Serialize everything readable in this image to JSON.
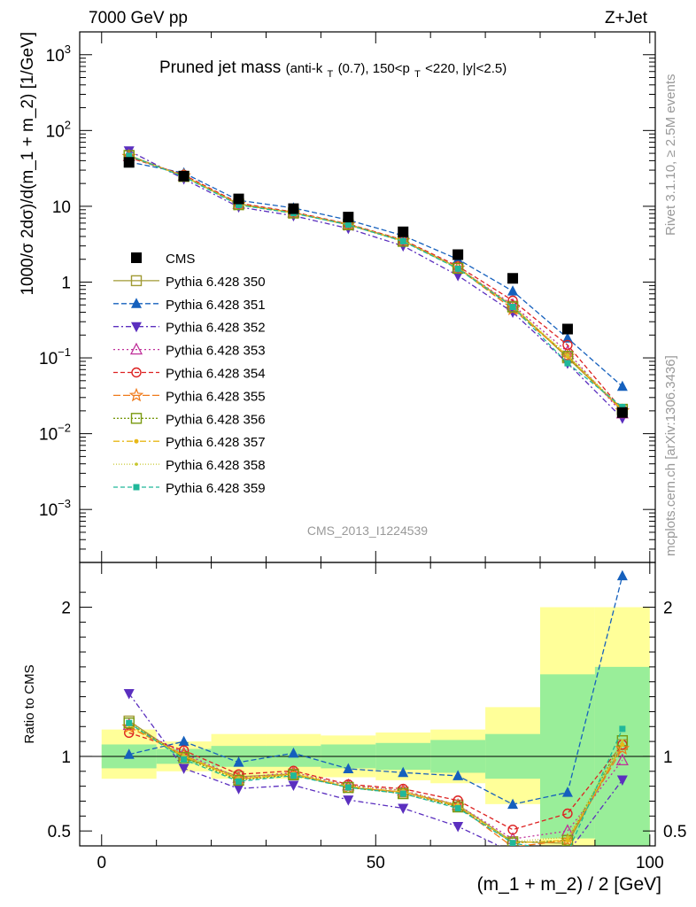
{
  "header": {
    "left": "7000 GeV pp",
    "right": "Z+Jet"
  },
  "side_labels": {
    "rivet": "Rivet 3.1.10, ≥ 2.5M events",
    "mcplots": "mcplots.cern.ch [arXiv:1306.3436]"
  },
  "chart_data": {
    "type": "line",
    "title_main": "Pruned jet mass",
    "title_sub_1": "(anti-k",
    "title_sub_T": "T",
    "title_sub_2": "(0.7), 150<p",
    "title_sub_3": "<220, |y|<2.5)",
    "analysis_label": "CMS_2013_I1224539",
    "ylabel": "1000/σ 2dσ)/d(m_1 + m_2) [1/GeV]",
    "ratio_ylabel": "Ratio to CMS",
    "xlabel": "(m_1 + m_2) / 2 [GeV]",
    "xlim": [
      -4,
      101
    ],
    "ylim": [
      0.0002,
      2000
    ],
    "yscale": "log",
    "ratio_ylim": [
      0.4,
      2.3
    ],
    "x_ticks": [
      "0",
      "50",
      "100"
    ],
    "y_ticks_main": [
      {
        "base": "10",
        "exp": "3"
      },
      {
        "base": "10",
        "exp": "2"
      },
      {
        "base": "10",
        "exp": ""
      },
      {
        "base": "1",
        "exp": ""
      },
      {
        "base": "10",
        "exp": "−1"
      },
      {
        "base": "10",
        "exp": "−2"
      },
      {
        "base": "10",
        "exp": "−3"
      }
    ],
    "ratio_ticks": [
      "2",
      "1",
      "0.5"
    ],
    "x": [
      5,
      15,
      25,
      35,
      45,
      55,
      65,
      75,
      85,
      95
    ],
    "x_edges": [
      0,
      10,
      20,
      30,
      40,
      50,
      60,
      70,
      80,
      90,
      100
    ],
    "cms": {
      "name": "CMS",
      "values": [
        38,
        25,
        12.5,
        9.3,
        7.2,
        4.6,
        2.3,
        1.12,
        0.24,
        0.019
      ],
      "band_inner": [
        [
          0.92,
          1.08
        ],
        [
          0.95,
          1.05
        ],
        [
          0.93,
          1.07
        ],
        [
          0.93,
          1.07
        ],
        [
          0.92,
          1.08
        ],
        [
          0.91,
          1.09
        ],
        [
          0.89,
          1.11
        ],
        [
          0.85,
          1.15
        ],
        [
          0.45,
          1.55
        ],
        [
          0.4,
          1.6
        ]
      ],
      "band_outer": [
        [
          0.85,
          1.18
        ],
        [
          0.9,
          1.1
        ],
        [
          0.85,
          1.15
        ],
        [
          0.85,
          1.15
        ],
        [
          0.86,
          1.14
        ],
        [
          0.84,
          1.16
        ],
        [
          0.82,
          1.18
        ],
        [
          0.68,
          1.33
        ],
        [
          0.3,
          2.0
        ],
        [
          0.3,
          2.0
        ]
      ]
    },
    "series": [
      {
        "name": "Pythia 6.428 350",
        "color": "#a09a33",
        "marker": "square-open",
        "dash": "",
        "values": [
          47,
          24.8,
          10.8,
          8.2,
          5.7,
          3.5,
          1.55,
          0.48,
          0.1,
          0.0205
        ]
      },
      {
        "name": "Pythia 6.428 351",
        "color": "#1560bd",
        "marker": "triangle-up",
        "dash": "6,3",
        "values": [
          38.5,
          27.5,
          12.0,
          9.5,
          6.6,
          4.1,
          2.0,
          0.76,
          0.182,
          0.042
        ]
      },
      {
        "name": "Pythia 6.428 352",
        "color": "#5b2fbf",
        "marker": "triangle-down",
        "dash": "6,3,2,3",
        "values": [
          54,
          23,
          9.8,
          7.5,
          5.1,
          3.0,
          1.22,
          0.4,
          0.085,
          0.016
        ]
      },
      {
        "name": "Pythia 6.428 353",
        "color": "#c0309a",
        "marker": "triangle-open",
        "dash": "2,3",
        "values": [
          46,
          25.5,
          10.7,
          8.3,
          5.8,
          3.55,
          1.55,
          0.5,
          0.12,
          0.0185
        ]
      },
      {
        "name": "Pythia 6.428 354",
        "color": "#dd2222",
        "marker": "circle-open",
        "dash": "5,3",
        "values": [
          44,
          26,
          11.0,
          8.4,
          5.85,
          3.6,
          1.62,
          0.57,
          0.148,
          0.0205
        ]
      },
      {
        "name": "Pythia 6.428 355",
        "color": "#f07a1a",
        "marker": "star-open",
        "dash": "8,3",
        "values": [
          45.5,
          25.2,
          10.6,
          8.2,
          5.7,
          3.5,
          1.53,
          0.44,
          0.105,
          0.02
        ]
      },
      {
        "name": "Pythia 6.428 356",
        "color": "#7a9a10",
        "marker": "square-open",
        "dash": "2,2",
        "values": [
          46.5,
          24.8,
          10.5,
          8.15,
          5.7,
          3.45,
          1.52,
          0.47,
          0.105,
          0.021
        ]
      },
      {
        "name": "Pythia 6.428 357",
        "color": "#e8b818",
        "marker": "dot",
        "dash": "7,3,2,3",
        "values": [
          46,
          25,
          10.6,
          8.2,
          5.75,
          3.5,
          1.54,
          0.47,
          0.105,
          0.0205
        ]
      },
      {
        "name": "Pythia 6.428 358",
        "color": "#c8c830",
        "marker": "dot-small",
        "dash": "1,2",
        "values": [
          46,
          25.2,
          10.7,
          8.25,
          5.8,
          3.55,
          1.55,
          0.48,
          0.11,
          0.021
        ]
      },
      {
        "name": "Pythia 6.428 359",
        "color": "#20b89a",
        "marker": "square-filled",
        "dash": "5,3",
        "values": [
          46.5,
          24.5,
          10.4,
          8.1,
          5.7,
          3.45,
          1.5,
          0.47,
          0.085,
          0.0225
        ]
      }
    ]
  }
}
